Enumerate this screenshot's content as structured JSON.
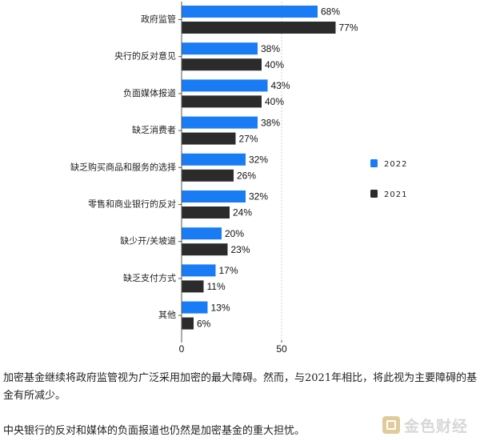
{
  "chart_data": {
    "type": "bar",
    "orientation": "horizontal",
    "categories": [
      "政府监管",
      "央行的反对意见",
      "负面媒体报道",
      "缺乏消费者",
      "缺乏购买商品和服务的选择",
      "零售和商业银行的反对",
      "缺少开/关坡道",
      "缺乏支付方式",
      "其他"
    ],
    "series": [
      {
        "name": "2022",
        "color": "#1a7cf5",
        "values": [
          68,
          38,
          43,
          38,
          32,
          32,
          20,
          17,
          13
        ]
      },
      {
        "name": "2021",
        "color": "#2b2b2b",
        "values": [
          77,
          40,
          40,
          27,
          26,
          24,
          23,
          11,
          6
        ]
      }
    ],
    "value_suffix": "%",
    "xlim": [
      0,
      85
    ],
    "xticks": [
      0,
      50
    ],
    "grid": true,
    "legend_position": "right",
    "title": "",
    "xlabel": "",
    "ylabel": ""
  },
  "captions": {
    "line1": "加密基金继续将政府监管视为广泛采用加密的最大障碍。然而，与2021年相比，将此视为主要障碍的基金有所减少。",
    "line2": "中央银行的反对和媒体的负面报道也仍然是加密基金的重大担忧。"
  },
  "watermark": {
    "text": "金色财经"
  }
}
